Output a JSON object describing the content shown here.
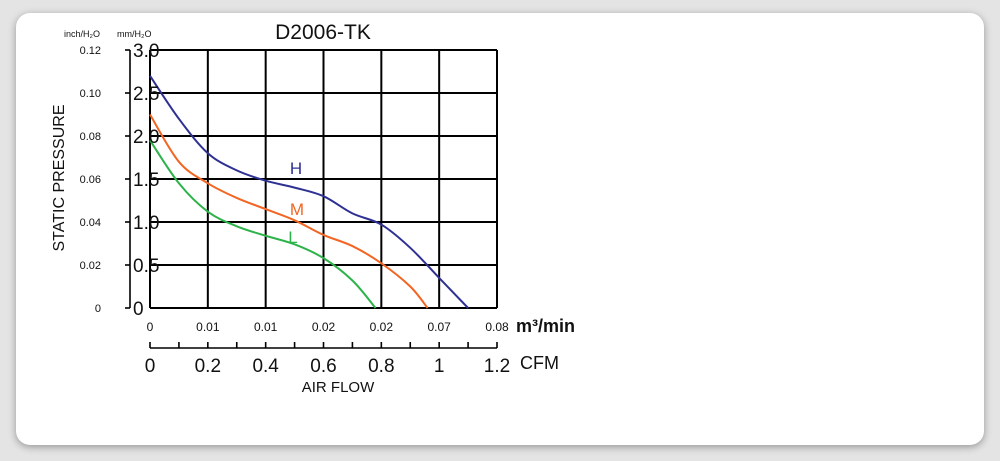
{
  "chart_data": {
    "type": "line",
    "title": "D2006-TK",
    "ylabel": "STATIC PRESSURE",
    "xlabel": "AIR FLOW",
    "y_unit_inch": "inch/H₂O",
    "y_unit_mm": "mm/H₂O",
    "x_unit_cfm": "CFM",
    "x_unit_m3": "m³/min",
    "ylim": [
      0,
      3.0
    ],
    "xlim": [
      0,
      1.2
    ],
    "grid": true,
    "y_ticks_mm": [
      "0",
      "0.5",
      "1.0",
      "1.5",
      "2.0",
      "2.5",
      "3.0"
    ],
    "y_ticks_inch": [
      "0",
      "0.02",
      "0.04",
      "0.06",
      "0.08",
      "0.10",
      "0.12"
    ],
    "x_ticks_cfm": [
      "0",
      "0.2",
      "0.4",
      "0.6",
      "0.8",
      "1",
      "1.2"
    ],
    "x_ticks_m3": [
      "0",
      "0.01",
      "0.01",
      "0.02",
      "0.02",
      "0.07",
      "0.08"
    ],
    "series": [
      {
        "name": "H",
        "color": "#2e3192",
        "x": [
          0,
          0.1,
          0.2,
          0.3,
          0.4,
          0.5,
          0.6,
          0.7,
          0.8,
          0.9,
          1.0,
          1.1
        ],
        "y": [
          2.7,
          2.2,
          1.8,
          1.6,
          1.48,
          1.4,
          1.3,
          1.1,
          0.97,
          0.7,
          0.35,
          0.0
        ]
      },
      {
        "name": "M",
        "color": "#f26522",
        "x": [
          0,
          0.1,
          0.2,
          0.3,
          0.4,
          0.5,
          0.6,
          0.7,
          0.8,
          0.9,
          0.96
        ],
        "y": [
          2.25,
          1.7,
          1.45,
          1.28,
          1.15,
          1.02,
          0.85,
          0.72,
          0.52,
          0.25,
          0.0
        ]
      },
      {
        "name": "L",
        "color": "#2db34a",
        "x": [
          0,
          0.1,
          0.2,
          0.3,
          0.4,
          0.5,
          0.6,
          0.7,
          0.78
        ],
        "y": [
          1.95,
          1.45,
          1.12,
          0.95,
          0.84,
          0.74,
          0.58,
          0.32,
          0.0
        ]
      }
    ]
  }
}
